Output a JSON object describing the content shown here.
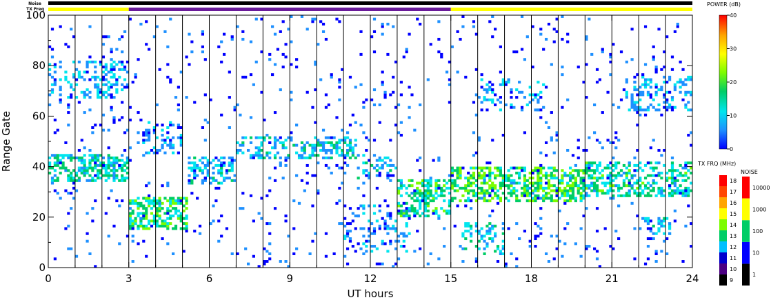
{
  "chart_data": {
    "type": "heatmap",
    "xlabel": "UT hours",
    "ylabel": "Range Gate",
    "xlim": [
      0,
      24
    ],
    "ylim": [
      0,
      100
    ],
    "x_ticks": [
      0,
      3,
      6,
      9,
      12,
      15,
      18,
      21,
      24
    ],
    "x_tick_labels": [
      "0",
      "3",
      "6",
      "9",
      "12",
      "15",
      "18",
      "21",
      "24"
    ],
    "y_ticks": [
      0,
      20,
      40,
      60,
      80,
      100
    ],
    "y_tick_labels": [
      "0",
      "20",
      "40",
      "60",
      "80",
      "100"
    ],
    "grid": false,
    "vertical_scan_lines": true,
    "noise_bar_label": "Noise",
    "txfreq_bar_label": "TX Freq",
    "txfreq_segments": [
      {
        "start": 0,
        "end": 3,
        "color": "#ffff00"
      },
      {
        "start": 3,
        "end": 15,
        "color": "#6a1b9a"
      },
      {
        "start": 15,
        "end": 24,
        "color": "#ffff00"
      }
    ],
    "power_colorbar": {
      "title": "POWER (dB)",
      "ticks": [
        "0",
        "10",
        "20",
        "30",
        "40"
      ],
      "range": [
        0,
        40
      ],
      "colors": [
        "#0000ff",
        "#1e90ff",
        "#00e5ee",
        "#00cd66",
        "#7cfc00",
        "#ffff00",
        "#ffa500",
        "#ff0000"
      ]
    },
    "txfreq_colorbar": {
      "title": "TX FRQ (MHz)",
      "ticks": [
        "9",
        "10",
        "11",
        "12",
        "13",
        "14",
        "15",
        "16",
        "17",
        "18"
      ],
      "colors": [
        "#000000",
        "#4b0082",
        "#0000cd",
        "#00bfff",
        "#00cd66",
        "#7cfc00",
        "#ffff00",
        "#ffa500",
        "#ff4500",
        "#ff0000"
      ]
    },
    "noise_colorbar": {
      "title": "NOISE",
      "ticks": [
        "1",
        "10",
        "100",
        "1000",
        "10000"
      ],
      "colors": [
        "#000000",
        "#0000ff",
        "#00cd66",
        "#ffff00",
        "#ff0000"
      ]
    },
    "scatter_bands": [
      {
        "x": [
          0.0,
          3.0
        ],
        "y": [
          34,
          45
        ],
        "power": 14,
        "density": 0.45
      },
      {
        "x": [
          0.0,
          3.0
        ],
        "y": [
          67,
          82
        ],
        "power": 9,
        "density": 0.3
      },
      {
        "x": [
          3.0,
          5.2
        ],
        "y": [
          15,
          28
        ],
        "power": 17,
        "density": 0.55
      },
      {
        "x": [
          3.5,
          5.0
        ],
        "y": [
          45,
          58
        ],
        "power": 8,
        "density": 0.3
      },
      {
        "x": [
          5.2,
          7.0
        ],
        "y": [
          33,
          44
        ],
        "power": 10,
        "density": 0.35
      },
      {
        "x": [
          7.0,
          11.5
        ],
        "y": [
          43,
          52
        ],
        "power": 11,
        "density": 0.35
      },
      {
        "x": [
          11.5,
          13.0
        ],
        "y": [
          35,
          45
        ],
        "power": 10,
        "density": 0.3
      },
      {
        "x": [
          13.0,
          15.0
        ],
        "y": [
          20,
          35
        ],
        "power": 16,
        "density": 0.45
      },
      {
        "x": [
          11.0,
          13.5
        ],
        "y": [
          5,
          25
        ],
        "power": 7,
        "density": 0.2
      },
      {
        "x": [
          15.0,
          20.0
        ],
        "y": [
          26,
          40
        ],
        "power": 19,
        "density": 0.55
      },
      {
        "x": [
          20.0,
          24.0
        ],
        "y": [
          28,
          42
        ],
        "power": 15,
        "density": 0.45
      },
      {
        "x": [
          15.3,
          17.0
        ],
        "y": [
          5,
          18
        ],
        "power": 12,
        "density": 0.3
      },
      {
        "x": [
          16.0,
          18.5
        ],
        "y": [
          62,
          75
        ],
        "power": 8,
        "density": 0.2
      },
      {
        "x": [
          21.5,
          24.0
        ],
        "y": [
          62,
          76
        ],
        "power": 9,
        "density": 0.25
      },
      {
        "x": [
          22.0,
          23.2
        ],
        "y": [
          13,
          20
        ],
        "power": 10,
        "density": 0.35
      },
      {
        "x": [
          0.0,
          24.0
        ],
        "y": [
          0,
          100
        ],
        "power": 4,
        "density": 0.03
      }
    ]
  }
}
